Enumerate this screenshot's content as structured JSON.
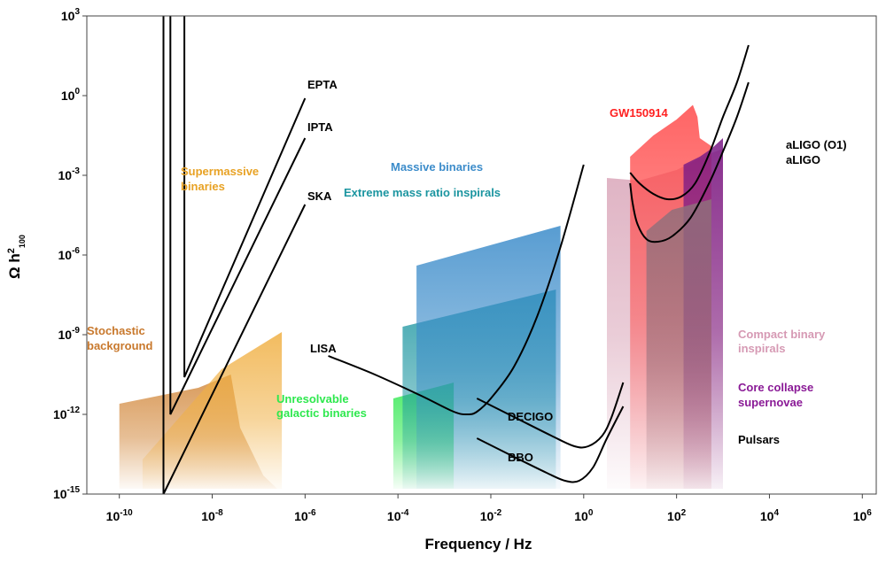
{
  "chart_data": {
    "type": "area",
    "title": "",
    "xlabel": "Frequency / Hz",
    "ylabel": {
      "base": "Ω h",
      "sup": "2",
      "sub": "100"
    },
    "xscale": "log",
    "yscale": "log",
    "xlim_log10": [
      -10.7,
      6.3
    ],
    "ylim_log10": [
      -15,
      3
    ],
    "xticks": [
      {
        "exp": -10,
        "base": "10",
        "sup": "-10"
      },
      {
        "exp": -8,
        "base": "10",
        "sup": "-8"
      },
      {
        "exp": -6,
        "base": "10",
        "sup": "-6"
      },
      {
        "exp": -4,
        "base": "10",
        "sup": "-4"
      },
      {
        "exp": -2,
        "base": "10",
        "sup": "-2"
      },
      {
        "exp": 0,
        "base": "10",
        "sup": "0"
      },
      {
        "exp": 2,
        "base": "10",
        "sup": "2"
      },
      {
        "exp": 4,
        "base": "10",
        "sup": "4"
      },
      {
        "exp": 6,
        "base": "10",
        "sup": "6"
      }
    ],
    "yticks": [
      {
        "exp": 3,
        "base": "10",
        "sup": "3"
      },
      {
        "exp": 0,
        "base": "10",
        "sup": "0"
      },
      {
        "exp": -3,
        "base": "10",
        "sup": "-3"
      },
      {
        "exp": -6,
        "base": "10",
        "sup": "-6"
      },
      {
        "exp": -9,
        "base": "10",
        "sup": "-9"
      },
      {
        "exp": -12,
        "base": "10",
        "sup": "-12"
      },
      {
        "exp": -15,
        "base": "10",
        "sup": "-15"
      }
    ],
    "sources": [
      {
        "name": "stochastic-background",
        "label": [
          "Stochastic",
          "background"
        ],
        "color": "#d2883c",
        "polygon": [
          [
            -10,
            -11.6
          ],
          [
            -8.3,
            -11.0
          ],
          [
            -7.6,
            -10.5
          ],
          [
            -7.4,
            -12.5
          ],
          [
            -6.9,
            -14.3
          ],
          [
            -6.6,
            -14.8
          ],
          [
            -10,
            -14.8
          ]
        ]
      },
      {
        "name": "supermassive-binaries",
        "label": [
          "Supermassive",
          "binaries"
        ],
        "color": "#f0b044",
        "polygon": [
          [
            -9.5,
            -13.7
          ],
          [
            -7.8,
            -10.3
          ],
          [
            -6.5,
            -8.9
          ],
          [
            -6.5,
            -14.8
          ],
          [
            -9.5,
            -14.8
          ]
        ]
      },
      {
        "name": "unresolvable-galactic-binaries",
        "label": [
          "Unresolvable",
          "galactic binaries"
        ],
        "color": "#2ee84e",
        "polygon": [
          [
            -4.1,
            -11.4
          ],
          [
            -2.8,
            -10.8
          ],
          [
            -2.8,
            -14.8
          ],
          [
            -4.1,
            -14.8
          ]
        ]
      },
      {
        "name": "extreme-mass-ratio-inspirals",
        "label": [
          "Extreme mass ratio inspirals"
        ],
        "color": "#1b95a0",
        "polygon": [
          [
            -3.9,
            -8.7
          ],
          [
            -0.6,
            -7.3
          ],
          [
            -0.6,
            -14.8
          ],
          [
            -3.9,
            -14.8
          ]
        ]
      },
      {
        "name": "massive-binaries",
        "label": [
          "Massive binaries"
        ],
        "color": "#3c8cca",
        "polygon": [
          [
            -3.6,
            -6.4
          ],
          [
            -0.5,
            -4.9
          ],
          [
            -0.5,
            -14.8
          ],
          [
            -3.6,
            -14.8
          ]
        ]
      },
      {
        "name": "compact-binary-inspirals",
        "label": [
          "Compact binary",
          "inspirals"
        ],
        "color": "#d8a2b6",
        "polygon": [
          [
            0.5,
            -3.1
          ],
          [
            1.2,
            -3.2
          ],
          [
            2.0,
            -2.8
          ],
          [
            2.7,
            -2.2
          ],
          [
            3.0,
            -2.0
          ],
          [
            3.0,
            -14.8
          ],
          [
            0.5,
            -14.8
          ]
        ]
      },
      {
        "name": "gw150914",
        "label": [
          "GW150914"
        ],
        "color": "#ff4b4b",
        "polygon": [
          [
            1.0,
            -2.3
          ],
          [
            1.5,
            -1.5
          ],
          [
            2.0,
            -0.9
          ],
          [
            2.35,
            -0.35
          ],
          [
            2.45,
            -0.8
          ],
          [
            2.5,
            -1.6
          ],
          [
            2.75,
            -1.9
          ],
          [
            2.75,
            -14.8
          ],
          [
            1.0,
            -14.8
          ]
        ]
      },
      {
        "name": "core-collapse-supernovae",
        "label": [
          "Core collapse",
          "supernovae"
        ],
        "color": "#7a1a86",
        "polygon": [
          [
            2.15,
            -2.6
          ],
          [
            2.5,
            -2.3
          ],
          [
            2.75,
            -2.0
          ],
          [
            3.0,
            -1.6
          ],
          [
            3.0,
            -14.8
          ],
          [
            2.15,
            -14.8
          ]
        ]
      },
      {
        "name": "pulsars",
        "label": [
          "Pulsars"
        ],
        "color": "#8f6f7b",
        "polygon": [
          [
            1.35,
            -5.1
          ],
          [
            1.9,
            -4.3
          ],
          [
            2.75,
            -3.9
          ],
          [
            2.75,
            -14.8
          ],
          [
            1.35,
            -14.8
          ]
        ]
      }
    ],
    "pta_lines": [
      {
        "name": "epta",
        "label": "EPTA",
        "points": [
          [
            -8.6,
            3
          ],
          [
            -8.6,
            -10.6
          ],
          [
            -6.0,
            -0.1
          ]
        ]
      },
      {
        "name": "ipta",
        "label": "IPTA",
        "points": [
          [
            -8.9,
            3
          ],
          [
            -8.9,
            -12.0
          ],
          [
            -6.0,
            -1.6
          ]
        ]
      },
      {
        "name": "ska",
        "label": "SKA",
        "points": [
          [
            -9.05,
            3
          ],
          [
            -9.05,
            -15
          ],
          [
            -6.0,
            -4.1
          ]
        ]
      }
    ],
    "detector_curves": [
      {
        "name": "lisa",
        "label": "LISA",
        "points": [
          [
            -5.5,
            -9.8
          ],
          [
            -4.5,
            -10.5
          ],
          [
            -3.5,
            -11.3
          ],
          [
            -2.8,
            -11.9
          ],
          [
            -2.5,
            -12.0
          ],
          [
            -2.3,
            -11.9
          ],
          [
            -2.0,
            -11.4
          ],
          [
            -1.5,
            -10.2
          ],
          [
            -1.0,
            -8.3
          ],
          [
            -0.5,
            -5.7
          ],
          [
            0.0,
            -2.6
          ]
        ]
      },
      {
        "name": "decigo",
        "label": "DECIGO",
        "points": [
          [
            -2.3,
            -11.4
          ],
          [
            -1.5,
            -12.1
          ],
          [
            -0.7,
            -12.8
          ],
          [
            -0.2,
            -13.2
          ],
          [
            0.1,
            -13.2
          ],
          [
            0.4,
            -12.8
          ],
          [
            0.6,
            -12.1
          ],
          [
            0.85,
            -10.8
          ]
        ]
      },
      {
        "name": "bbo",
        "label": "BBO",
        "points": [
          [
            -2.3,
            -12.9
          ],
          [
            -1.5,
            -13.6
          ],
          [
            -0.8,
            -14.2
          ],
          [
            -0.4,
            -14.5
          ],
          [
            -0.1,
            -14.5
          ],
          [
            0.2,
            -14.0
          ],
          [
            0.5,
            -12.9
          ],
          [
            0.85,
            -11.7
          ]
        ]
      },
      {
        "name": "aligo-o1",
        "label": "aLIGO (O1)",
        "points": [
          [
            1.0,
            -2.9
          ],
          [
            1.2,
            -3.3
          ],
          [
            1.5,
            -3.7
          ],
          [
            1.8,
            -3.9
          ],
          [
            2.1,
            -3.8
          ],
          [
            2.4,
            -3.3
          ],
          [
            2.7,
            -2.2
          ],
          [
            3.0,
            -0.8
          ],
          [
            3.3,
            0.5
          ],
          [
            3.55,
            1.9
          ]
        ]
      },
      {
        "name": "aligo",
        "label": "aLIGO",
        "points": [
          [
            1.0,
            -3.3
          ],
          [
            1.05,
            -4.0
          ],
          [
            1.15,
            -4.8
          ],
          [
            1.35,
            -5.4
          ],
          [
            1.6,
            -5.5
          ],
          [
            1.9,
            -5.3
          ],
          [
            2.3,
            -4.6
          ],
          [
            2.7,
            -3.3
          ],
          [
            3.0,
            -2.1
          ],
          [
            3.3,
            -0.8
          ],
          [
            3.55,
            0.5
          ]
        ]
      }
    ],
    "labels": {
      "epta": "EPTA",
      "ipta": "IPTA",
      "ska": "SKA",
      "lisa": "LISA",
      "decigo": "DECIGO",
      "bbo": "BBO",
      "aligo_o1": "aLIGO (O1)",
      "aligo": "aLIGO",
      "supermassive_1": "Supermassive",
      "supermassive_2": "binaries",
      "stochastic_1": "Stochastic",
      "stochastic_2": "background",
      "unresolvable_1": "Unresolvable",
      "unresolvable_2": "galactic binaries",
      "massive": "Massive binaries",
      "emri": "Extreme mass ratio inspirals",
      "gw150914": "GW150914",
      "compact_1": "Compact binary",
      "compact_2": "inspirals",
      "core_1": "Core collapse",
      "core_2": "supernovae",
      "pulsars": "Pulsars"
    },
    "colors": {
      "supermassive": "#e8a224",
      "stochastic": "#c8782c",
      "unresolvable": "#2ee84e",
      "massive": "#3c8cca",
      "emri": "#1b95a0",
      "gw150914": "#ff2020",
      "compact": "#d69ab4",
      "core": "#8a1a96",
      "black": "#000000"
    }
  }
}
